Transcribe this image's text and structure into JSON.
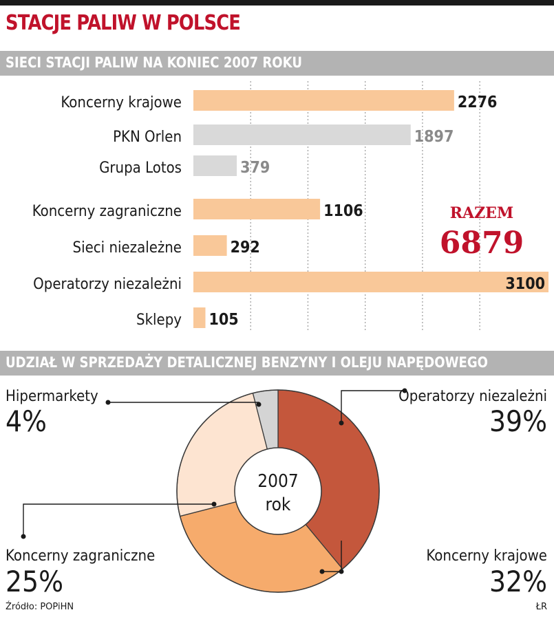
{
  "page": {
    "title": "STACJE PALIW W POLSCE",
    "source": "Źródło: POPiHN",
    "credit": "ŁR"
  },
  "colors": {
    "accent": "#c0122b",
    "bar_orange": "#f9c899",
    "bar_gray": "#d9d9d9",
    "band_gray": "#b3b3b3",
    "pie_dark": "#c4573c",
    "pie_orange": "#f6ab6c",
    "pie_light": "#fde4d1",
    "pie_gray": "#d4d4d4"
  },
  "chart_data": [
    {
      "type": "bar",
      "orientation": "horizontal",
      "title": "SIECI STACJI PALIW NA KONIEC 2007 ROKU",
      "categories": [
        "Koncerny krajowe",
        "PKN Orlen",
        "Grupa Lotos",
        "Koncerny zagraniczne",
        "Sieci niezależne",
        "Operatorzy niezależni",
        "Sklepy"
      ],
      "values": [
        2276,
        1897,
        379,
        1106,
        292,
        3100,
        105
      ],
      "bar_colors": [
        "orange",
        "gray",
        "gray",
        "orange",
        "orange",
        "orange",
        "orange"
      ],
      "xlim": [
        0,
        3100
      ],
      "grid": true,
      "total_label": "RAZEM",
      "total_value": "6879"
    },
    {
      "type": "pie",
      "subtype": "donut",
      "title": "UDZIAŁ W SPRZEDAŻY DETALICZNEJ BENZYNY I OLEJU NAPĘDOWEGO",
      "center_label": [
        "2007",
        "rok"
      ],
      "slices": [
        {
          "label": "Operatorzy niezależni",
          "value": 39,
          "value_label": "39%",
          "color": "#c4573c"
        },
        {
          "label": "Koncerny krajowe",
          "value": 32,
          "value_label": "32%",
          "color": "#f6ab6c"
        },
        {
          "label": "Koncerny zagraniczne",
          "value": 25,
          "value_label": "25%",
          "color": "#fde4d1"
        },
        {
          "label": "Hipermarkety",
          "value": 4,
          "value_label": "4%",
          "color": "#d4d4d4"
        }
      ]
    }
  ]
}
